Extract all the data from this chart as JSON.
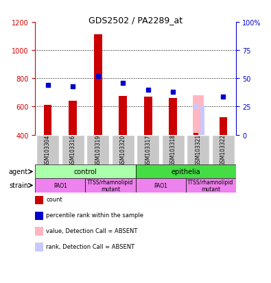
{
  "title": "GDS2502 / PA2289_at",
  "samples": [
    "GSM103304",
    "GSM103316",
    "GSM103319",
    "GSM103320",
    "GSM103317",
    "GSM103318",
    "GSM103321",
    "GSM103322"
  ],
  "counts": [
    610,
    640,
    1115,
    675,
    670,
    660,
    410,
    525
  ],
  "ranks_pct": [
    44,
    43,
    52,
    46,
    40,
    38,
    25,
    34
  ],
  "absent_value": [
    null,
    null,
    null,
    null,
    null,
    null,
    680,
    null
  ],
  "absent_rank_pct": [
    null,
    null,
    null,
    null,
    null,
    null,
    26,
    null
  ],
  "detection_absent": [
    false,
    false,
    false,
    false,
    false,
    false,
    true,
    false
  ],
  "ylim_left": [
    400,
    1200
  ],
  "ylim_right": [
    0,
    100
  ],
  "yticks_left": [
    400,
    600,
    800,
    1000,
    1200
  ],
  "yticks_right": [
    0,
    25,
    50,
    75,
    100
  ],
  "yticklabels_right": [
    "0",
    "25",
    "50",
    "75",
    "100%"
  ],
  "agent_groups": [
    {
      "label": "control",
      "span": [
        0,
        4
      ],
      "color": "#aaffaa"
    },
    {
      "label": "epithelia",
      "span": [
        4,
        8
      ],
      "color": "#44dd44"
    }
  ],
  "strain_groups": [
    {
      "label": "PAO1",
      "span": [
        0,
        2
      ],
      "color": "#ee82ee"
    },
    {
      "label": "TTSS/rhamnolipid\nmutant",
      "span": [
        2,
        4
      ],
      "color": "#ee82ee"
    },
    {
      "label": "PAO1",
      "span": [
        4,
        6
      ],
      "color": "#ee82ee"
    },
    {
      "label": "TTSS/rhamnolipid\nmutant",
      "span": [
        6,
        8
      ],
      "color": "#ee82ee"
    }
  ],
  "bar_color_present": "#cc0000",
  "bar_color_absent_value": "#ffb6c1",
  "bar_color_absent_rank": "#c8c8ff",
  "rank_marker_color_present": "#0000cc",
  "rank_marker_color_absent": "#c8c8ff",
  "legend_items": [
    {
      "color": "#cc0000",
      "label": "count"
    },
    {
      "color": "#0000cc",
      "label": "percentile rank within the sample"
    },
    {
      "color": "#ffb6c1",
      "label": "value, Detection Call = ABSENT"
    },
    {
      "color": "#c8c8ff",
      "label": "rank, Detection Call = ABSENT"
    }
  ],
  "left_axis_color": "#cc0000",
  "right_axis_color": "#0000cc",
  "sample_label_bg": "#c8c8c8"
}
